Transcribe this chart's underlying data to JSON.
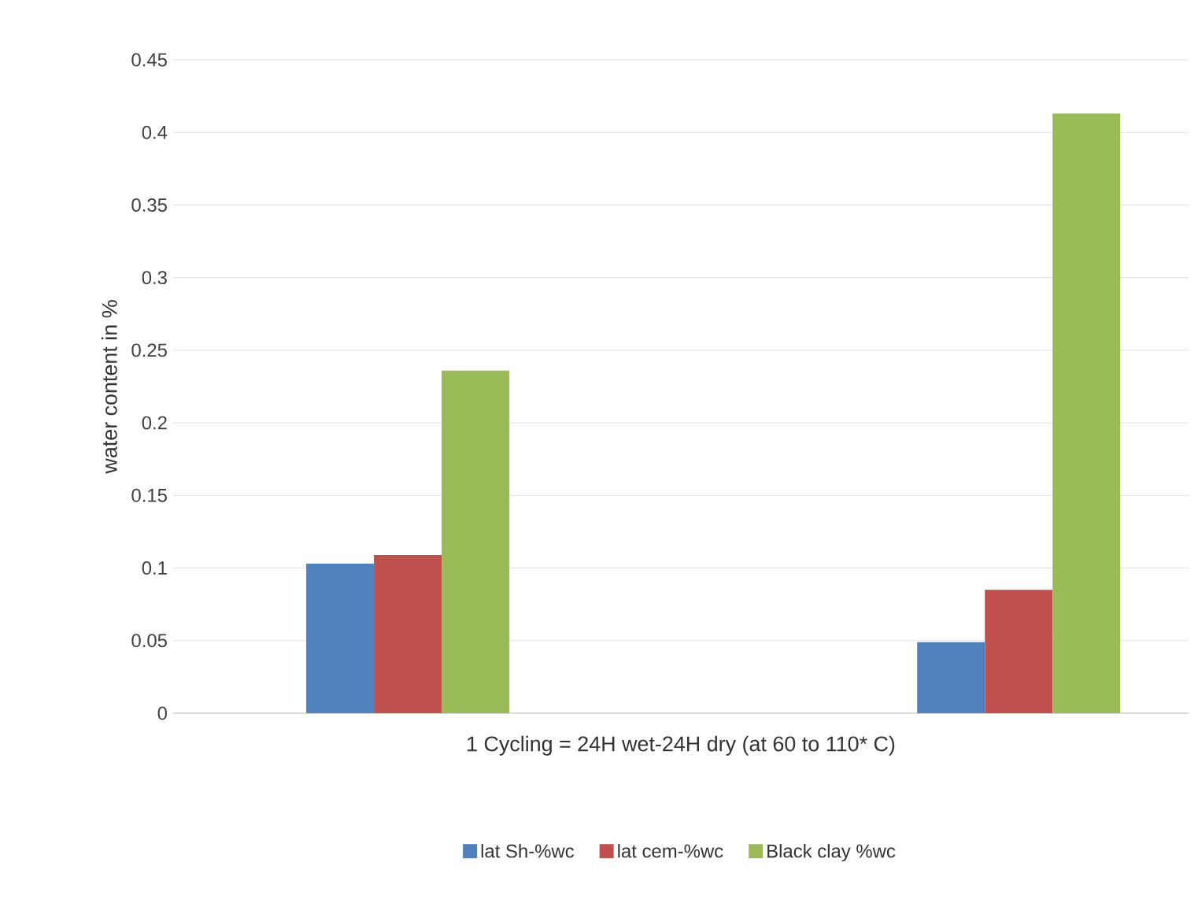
{
  "chart_data": {
    "type": "bar",
    "xlabel": "1 Cycling = 24H wet-24H dry (at 60 to 110* C)",
    "ylabel": "water content in %",
    "categories": [
      null,
      null
    ],
    "series": [
      {
        "name": "lat Sh-%wc",
        "color": "#4f81bd",
        "values": [
          0.103,
          0.049
        ]
      },
      {
        "name": "lat cem-%wc",
        "color": "#c0504d",
        "values": [
          0.109,
          0.085
        ]
      },
      {
        "name": "Black clay %wc",
        "color": "#9bbb59",
        "values": [
          0.236,
          0.413
        ]
      }
    ],
    "ylim": [
      0,
      0.45
    ],
    "yticks": [
      0,
      0.05,
      0.1,
      0.15,
      0.2,
      0.25,
      0.3,
      0.35,
      0.4,
      0.45
    ],
    "grid": "y",
    "legend": "bottom"
  }
}
